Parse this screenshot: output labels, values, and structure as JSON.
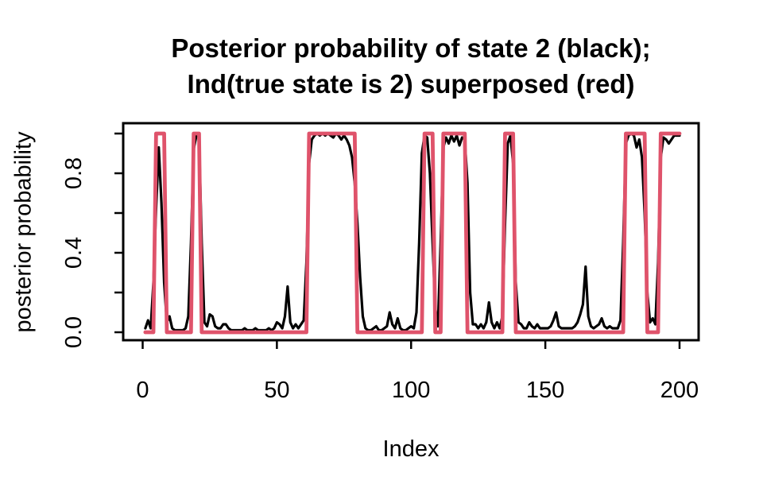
{
  "figure": {
    "background_color": "#ffffff",
    "foreground_color": "#000000"
  },
  "chart_data": {
    "type": "line",
    "title": "Posterior probability of state 2 (black); Ind(true state is 2) superposed (red)",
    "title_line1": "Posterior probability of state 2 (black);",
    "title_line2": "Ind(true state is 2) superposed (red)",
    "xlabel": "Index",
    "ylabel": "posterior probability",
    "xlim": [
      -7,
      208
    ],
    "ylim": [
      -0.04,
      1.04
    ],
    "x_ticks": [
      0,
      50,
      100,
      150,
      200
    ],
    "x_tick_labels": [
      "0",
      "50",
      "100",
      "150",
      "200"
    ],
    "y_ticks": [
      0.0,
      0.2,
      0.4,
      0.6,
      0.8,
      1.0
    ],
    "y_tick_labels": [
      "0.0",
      "",
      "0.4",
      "",
      "0.8",
      ""
    ],
    "grid": false,
    "legend": "none (colors described in title)",
    "series": [
      {
        "name": "posterior probability of state 2",
        "color": "#000000",
        "line_width": 3.2,
        "x_start": 1,
        "x_step": 1,
        "y": [
          0.02,
          0.06,
          0.02,
          0.25,
          0.62,
          0.93,
          0.65,
          0.25,
          0.05,
          0.08,
          0.02,
          0.01,
          0.01,
          0.01,
          0.01,
          0.02,
          0.08,
          0.45,
          0.92,
          0.99,
          0.99,
          0.45,
          0.05,
          0.03,
          0.09,
          0.08,
          0.03,
          0.02,
          0.02,
          0.04,
          0.04,
          0.02,
          0.01,
          0.01,
          0.01,
          0.01,
          0.01,
          0.02,
          0.01,
          0.01,
          0.01,
          0.02,
          0.01,
          0.01,
          0.01,
          0.01,
          0.02,
          0.01,
          0.02,
          0.05,
          0.04,
          0.02,
          0.08,
          0.23,
          0.05,
          0.02,
          0.04,
          0.02,
          0.04,
          0.06,
          0.35,
          0.85,
          0.97,
          0.99,
          1.0,
          0.99,
          1.0,
          0.99,
          1.0,
          0.99,
          0.98,
          1.0,
          0.99,
          0.97,
          0.99,
          0.97,
          0.94,
          0.88,
          0.75,
          0.55,
          0.28,
          0.08,
          0.02,
          0.01,
          0.01,
          0.02,
          0.03,
          0.01,
          0.01,
          0.02,
          0.03,
          0.1,
          0.04,
          0.02,
          0.07,
          0.02,
          0.01,
          0.01,
          0.02,
          0.03,
          0.02,
          0.1,
          0.45,
          0.9,
          0.99,
          0.98,
          0.8,
          0.45,
          0.12,
          0.03,
          0.45,
          0.93,
          0.98,
          0.95,
          0.99,
          0.96,
          0.99,
          0.94,
          0.98,
          0.97,
          0.75,
          0.2,
          0.04,
          0.04,
          0.02,
          0.04,
          0.02,
          0.05,
          0.15,
          0.05,
          0.02,
          0.05,
          0.02,
          0.08,
          0.55,
          0.95,
          0.99,
          0.85,
          0.25,
          0.05,
          0.04,
          0.02,
          0.02,
          0.05,
          0.03,
          0.02,
          0.04,
          0.02,
          0.02,
          0.02,
          0.02,
          0.03,
          0.06,
          0.1,
          0.03,
          0.02,
          0.02,
          0.02,
          0.02,
          0.02,
          0.03,
          0.05,
          0.09,
          0.14,
          0.33,
          0.08,
          0.03,
          0.02,
          0.03,
          0.04,
          0.07,
          0.03,
          0.02,
          0.03,
          0.02,
          0.02,
          0.02,
          0.06,
          0.45,
          0.95,
          0.99,
          1.0,
          0.99,
          0.93,
          0.97,
          0.88,
          0.6,
          0.2,
          0.05,
          0.07,
          0.04,
          0.35,
          0.88,
          0.98,
          0.97,
          0.95,
          0.97,
          0.99,
          0.99,
          0.99
        ]
      },
      {
        "name": "Ind(true state is 2)",
        "color": "#DF536B",
        "line_width": 4.8,
        "x_start": 1,
        "x_end": 200,
        "kind": "binary-indicator",
        "one_segments": [
          [
            5,
            8
          ],
          [
            19,
            21
          ],
          [
            62,
            79
          ],
          [
            105,
            108
          ],
          [
            112,
            120
          ],
          [
            135,
            138
          ],
          [
            180,
            187
          ],
          [
            193,
            200
          ]
        ]
      }
    ]
  }
}
